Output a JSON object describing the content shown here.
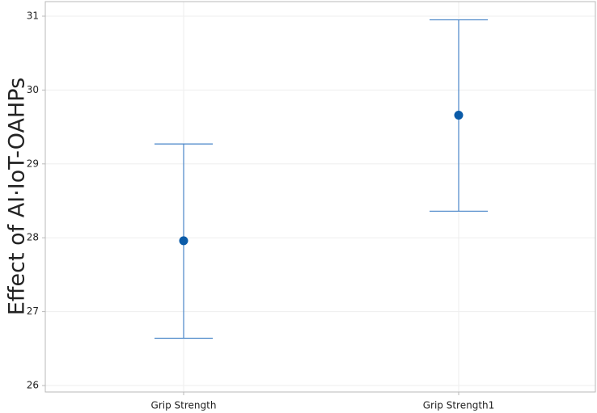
{
  "chart_data": {
    "type": "errorbar",
    "title": "",
    "xlabel": "",
    "ylabel": "Effect of AI·IoT-OAHPs",
    "categories": [
      "Grip Strength",
      "Grip Strength1"
    ],
    "values": [
      27.96,
      29.66
    ],
    "lower": [
      26.64,
      28.36
    ],
    "upper": [
      29.27,
      30.95
    ],
    "ylim": [
      26,
      31
    ],
    "yticks": [
      26,
      27,
      28,
      29,
      30,
      31
    ],
    "grid": true,
    "legend": "none",
    "colors": {
      "point": "#0B5BA8",
      "errorbar": "#4A86C8",
      "grid": "#EEEEEE",
      "frame": "#B8B8B8"
    }
  }
}
